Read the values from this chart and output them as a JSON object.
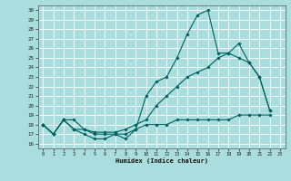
{
  "xlabel": "Humidex (Indice chaleur)",
  "bg_color": "#aadddd",
  "grid_color": "#ffffff",
  "line_color": "#006060",
  "xlim": [
    -0.5,
    23.5
  ],
  "ylim": [
    15.5,
    30.5
  ],
  "yticks": [
    16,
    17,
    18,
    19,
    20,
    21,
    22,
    23,
    24,
    25,
    26,
    27,
    28,
    29,
    30
  ],
  "xticks": [
    0,
    1,
    2,
    3,
    4,
    5,
    6,
    7,
    8,
    9,
    10,
    11,
    12,
    13,
    14,
    15,
    16,
    17,
    18,
    19,
    20,
    21,
    22,
    23
  ],
  "line1_x": [
    0,
    1,
    2,
    3,
    4,
    5,
    6,
    7,
    8,
    9,
    10,
    11,
    12,
    13,
    14,
    15,
    16,
    17,
    18,
    19,
    20,
    21,
    22
  ],
  "line1_y": [
    18,
    17,
    18.5,
    17.5,
    17,
    16.5,
    16.5,
    17,
    16.5,
    17.5,
    21,
    22.5,
    23,
    25,
    27.5,
    29.5,
    30,
    25.5,
    25.5,
    26.5,
    24.5,
    23,
    19.5
  ],
  "line2_x": [
    0,
    1,
    2,
    3,
    4,
    5,
    6,
    7,
    8,
    9,
    10,
    11,
    12,
    13,
    14,
    15,
    16,
    17,
    18,
    19,
    20,
    21,
    22
  ],
  "line2_y": [
    18,
    17,
    18.5,
    18.5,
    17.5,
    17.2,
    17.2,
    17.2,
    17.5,
    18,
    18.5,
    20,
    21,
    22,
    23,
    23.5,
    24,
    25,
    25.5,
    25,
    24.5,
    23,
    19.5
  ],
  "line3_x": [
    0,
    1,
    2,
    3,
    4,
    5,
    6,
    7,
    8,
    9,
    10,
    11,
    12,
    13,
    14,
    15,
    16,
    17,
    18,
    19,
    20,
    21,
    22
  ],
  "line3_y": [
    18,
    17,
    18.5,
    17.5,
    17.5,
    17,
    17,
    17,
    17,
    17.5,
    18,
    18,
    18,
    18.5,
    18.5,
    18.5,
    18.5,
    18.5,
    18.5,
    19,
    19,
    19,
    19
  ]
}
